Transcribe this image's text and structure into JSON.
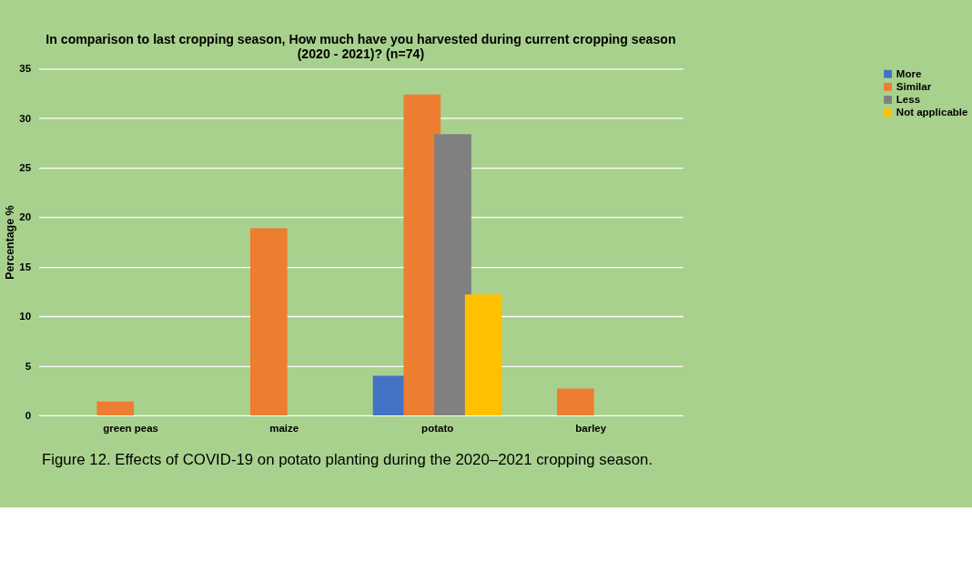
{
  "chart_data": {
    "type": "bar",
    "title": "In comparison to last cropping season, How much have you harvested during current cropping season (2020 - 2021)? (n=74)",
    "ylabel": "Percentage %",
    "categories": [
      "green peas",
      "maize",
      "potato",
      "barley"
    ],
    "series": [
      {
        "name": "More",
        "color": "#4472c4",
        "values": [
          null,
          null,
          4.0,
          null
        ]
      },
      {
        "name": "Similar",
        "color": "#ed7d31",
        "values": [
          1.4,
          18.9,
          32.4,
          2.7
        ]
      },
      {
        "name": "Less",
        "color": "#808080",
        "values": [
          null,
          null,
          28.4,
          null
        ]
      },
      {
        "name": "Not applicable",
        "color": "#ffc000",
        "values": [
          null,
          null,
          12.2,
          null
        ]
      }
    ],
    "ylim": [
      0,
      35
    ],
    "yticks": [
      0,
      5,
      10,
      15,
      20,
      25,
      30,
      35
    ],
    "grid": "y",
    "legend": "right",
    "annotations": [
      "Figure 12. Effects of COVID-19 on potato planting during the 2020–2021 cropping season."
    ]
  }
}
